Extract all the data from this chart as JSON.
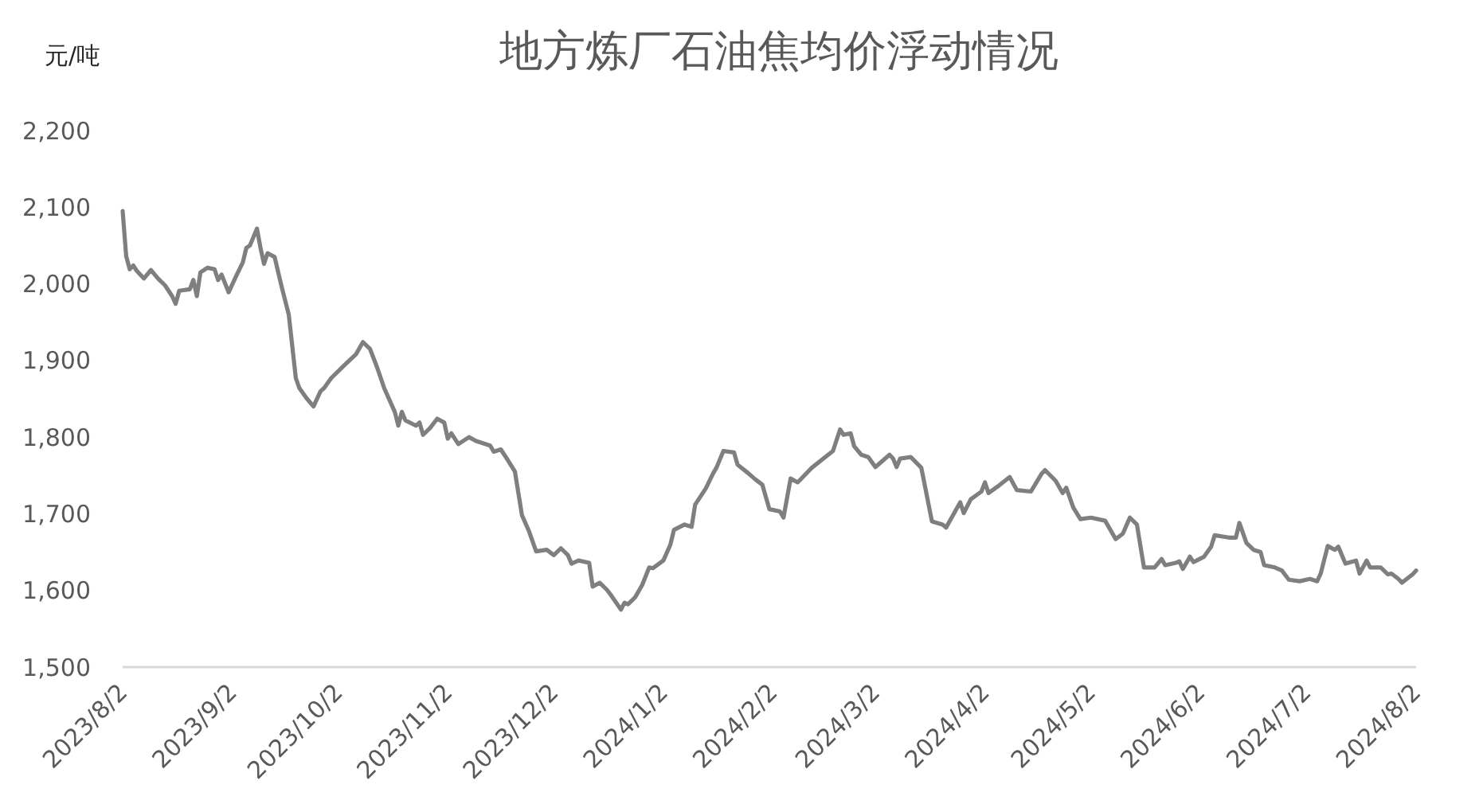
{
  "chart_data": {
    "type": "line",
    "title": "地方炼厂石油焦均价浮动情况",
    "ylabel": "元/吨",
    "x": [
      "2023-08-02",
      "2023-08-03",
      "2023-08-04",
      "2023-08-05",
      "2023-08-06",
      "2023-08-08",
      "2023-08-10",
      "2023-08-12",
      "2023-08-14",
      "2023-08-16",
      "2023-08-17",
      "2023-08-18",
      "2023-08-21",
      "2023-08-22",
      "2023-08-23",
      "2023-08-24",
      "2023-08-26",
      "2023-08-28",
      "2023-08-29",
      "2023-08-30",
      "2023-09-01",
      "2023-09-03",
      "2023-09-05",
      "2023-09-06",
      "2023-09-07",
      "2023-09-09",
      "2023-09-10",
      "2023-09-11",
      "2023-09-12",
      "2023-09-14",
      "2023-09-16",
      "2023-09-18",
      "2023-09-20",
      "2023-09-21",
      "2023-09-23",
      "2023-09-25",
      "2023-09-27",
      "2023-09-28",
      "2023-09-30",
      "2023-10-04",
      "2023-10-07",
      "2023-10-09",
      "2023-10-11",
      "2023-10-13",
      "2023-10-15",
      "2023-10-18",
      "2023-10-19",
      "2023-10-20",
      "2023-10-21",
      "2023-10-24",
      "2023-10-25",
      "2023-10-26",
      "2023-10-28",
      "2023-10-30",
      "2023-11-01",
      "2023-11-02",
      "2023-11-03",
      "2023-11-05",
      "2023-11-08",
      "2023-11-10",
      "2023-11-14",
      "2023-11-15",
      "2023-11-17",
      "2023-11-19",
      "2023-11-21",
      "2023-11-23",
      "2023-11-25",
      "2023-11-27",
      "2023-11-30",
      "2023-12-02",
      "2023-12-04",
      "2023-12-06",
      "2023-12-07",
      "2023-12-09",
      "2023-12-12",
      "2023-12-13",
      "2023-12-15",
      "2023-12-17",
      "2023-12-18",
      "2023-12-21",
      "2023-12-22",
      "2023-12-23",
      "2023-12-25",
      "2023-12-27",
      "2023-12-29",
      "2023-12-30",
      "2024-01-02",
      "2024-01-04",
      "2024-01-05",
      "2024-01-08",
      "2024-01-10",
      "2024-01-11",
      "2024-01-14",
      "2024-01-16",
      "2024-01-17",
      "2024-01-19",
      "2024-01-22",
      "2024-01-23",
      "2024-01-26",
      "2024-01-28",
      "2024-01-30",
      "2024-02-01",
      "2024-02-04",
      "2024-02-05",
      "2024-02-07",
      "2024-02-09",
      "2024-02-13",
      "2024-02-19",
      "2024-02-21",
      "2024-02-22",
      "2024-02-24",
      "2024-02-25",
      "2024-02-27",
      "2024-02-29",
      "2024-03-02",
      "2024-03-06",
      "2024-03-07",
      "2024-03-08",
      "2024-03-09",
      "2024-03-12",
      "2024-03-15",
      "2024-03-18",
      "2024-03-21",
      "2024-03-22",
      "2024-03-26",
      "2024-03-27",
      "2024-03-29",
      "2024-04-01",
      "2024-04-02",
      "2024-04-03",
      "2024-04-06",
      "2024-04-09",
      "2024-04-11",
      "2024-04-15",
      "2024-04-18",
      "2024-04-19",
      "2024-04-22",
      "2024-04-24",
      "2024-04-25",
      "2024-04-27",
      "2024-04-29",
      "2024-05-02",
      "2024-05-06",
      "2024-05-09",
      "2024-05-11",
      "2024-05-13",
      "2024-05-15",
      "2024-05-17",
      "2024-05-20",
      "2024-05-22",
      "2024-05-23",
      "2024-05-26",
      "2024-05-27",
      "2024-05-28",
      "2024-05-30",
      "2024-05-31",
      "2024-06-03",
      "2024-06-05",
      "2024-06-06",
      "2024-06-10",
      "2024-06-12",
      "2024-06-13",
      "2024-06-15",
      "2024-06-17",
      "2024-06-19",
      "2024-06-20",
      "2024-06-23",
      "2024-06-25",
      "2024-06-27",
      "2024-06-30",
      "2024-07-03",
      "2024-07-05",
      "2024-07-06",
      "2024-07-08",
      "2024-07-10",
      "2024-07-11",
      "2024-07-13",
      "2024-07-16",
      "2024-07-17",
      "2024-07-19",
      "2024-07-20",
      "2024-07-23",
      "2024-07-25",
      "2024-07-26",
      "2024-07-28",
      "2024-07-29",
      "2024-08-01",
      "2024-08-02"
    ],
    "values": [
      2095,
      2036,
      2019,
      2024,
      2017,
      2007,
      2018,
      2007,
      1998,
      1984,
      1974,
      1991,
      1993,
      2005,
      1984,
      2015,
      2021,
      2019,
      2005,
      2012,
      1989,
      2009,
      2028,
      2047,
      2050,
      2072,
      2047,
      2026,
      2040,
      2035,
      1996,
      1960,
      1877,
      1864,
      1851,
      1840,
      1860,
      1864,
      1877,
      1895,
      1908,
      1924,
      1915,
      1891,
      1864,
      1833,
      1815,
      1833,
      1822,
      1815,
      1819,
      1803,
      1812,
      1824,
      1819,
      1798,
      1805,
      1791,
      1800,
      1795,
      1789,
      1781,
      1784,
      1770,
      1755,
      1698,
      1677,
      1651,
      1653,
      1646,
      1655,
      1646,
      1635,
      1639,
      1636,
      1605,
      1610,
      1601,
      1595,
      1575,
      1584,
      1582,
      1591,
      1607,
      1630,
      1629,
      1639,
      1660,
      1679,
      1686,
      1683,
      1712,
      1733,
      1752,
      1760,
      1782,
      1780,
      1764,
      1753,
      1745,
      1738,
      1706,
      1703,
      1695,
      1746,
      1741,
      1760,
      1782,
      1810,
      1803,
      1805,
      1788,
      1777,
      1774,
      1761,
      1777,
      1772,
      1761,
      1772,
      1774,
      1760,
      1690,
      1686,
      1682,
      1715,
      1701,
      1719,
      1729,
      1741,
      1727,
      1737,
      1748,
      1731,
      1729,
      1752,
      1757,
      1743,
      1727,
      1734,
      1708,
      1693,
      1695,
      1691,
      1667,
      1674,
      1695,
      1686,
      1630,
      1630,
      1641,
      1633,
      1636,
      1638,
      1628,
      1644,
      1637,
      1644,
      1657,
      1672,
      1669,
      1669,
      1688,
      1662,
      1653,
      1650,
      1633,
      1630,
      1626,
      1614,
      1612,
      1615,
      1612,
      1622,
      1658,
      1653,
      1657,
      1635,
      1639,
      1622,
      1639,
      1630,
      1630,
      1621,
      1622,
      1615,
      1610,
      1621,
      1626
    ],
    "color": "#7f7f7f",
    "xlim": [
      "2023-08-02",
      "2024-08-02"
    ],
    "xticks": [
      {
        "value": "2023-08-02",
        "label": "2023/8/2"
      },
      {
        "value": "2023-09-02",
        "label": "2023/9/2"
      },
      {
        "value": "2023-10-02",
        "label": "2023/10/2"
      },
      {
        "value": "2023-11-02",
        "label": "2023/11/2"
      },
      {
        "value": "2023-12-02",
        "label": "2023/12/2"
      },
      {
        "value": "2024-01-02",
        "label": "2024/1/2"
      },
      {
        "value": "2024-02-02",
        "label": "2024/2/2"
      },
      {
        "value": "2024-03-02",
        "label": "2024/3/2"
      },
      {
        "value": "2024-04-02",
        "label": "2024/4/2"
      },
      {
        "value": "2024-05-02",
        "label": "2024/5/2"
      },
      {
        "value": "2024-06-02",
        "label": "2024/6/2"
      },
      {
        "value": "2024-07-02",
        "label": "2024/7/2"
      },
      {
        "value": "2024-08-02",
        "label": "2024/8/2"
      }
    ],
    "ylim": [
      1500,
      2200
    ],
    "yticks": [
      {
        "value": 1500,
        "label": "1,500"
      },
      {
        "value": 1600,
        "label": "1,600"
      },
      {
        "value": 1700,
        "label": "1,700"
      },
      {
        "value": 1800,
        "label": "1,800"
      },
      {
        "value": 1900,
        "label": "1,900"
      },
      {
        "value": 2000,
        "label": "2,000"
      },
      {
        "value": 2100,
        "label": "2,100"
      },
      {
        "value": 2200,
        "label": "2,200"
      }
    ]
  }
}
